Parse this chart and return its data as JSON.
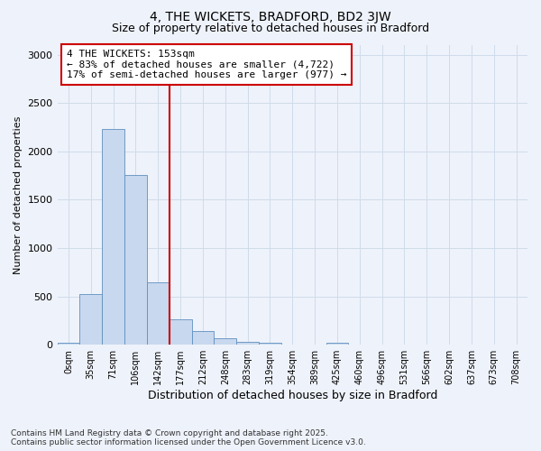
{
  "title": "4, THE WICKETS, BRADFORD, BD2 3JW",
  "subtitle": "Size of property relative to detached houses in Bradford",
  "xlabel": "Distribution of detached houses by size in Bradford",
  "ylabel": "Number of detached properties",
  "bar_color": "#c8d8ee",
  "bar_edge_color": "#6090c0",
  "bins": [
    "0sqm",
    "35sqm",
    "71sqm",
    "106sqm",
    "142sqm",
    "177sqm",
    "212sqm",
    "248sqm",
    "283sqm",
    "319sqm",
    "354sqm",
    "389sqm",
    "425sqm",
    "460sqm",
    "496sqm",
    "531sqm",
    "566sqm",
    "602sqm",
    "637sqm",
    "673sqm",
    "708sqm"
  ],
  "values": [
    25,
    520,
    2230,
    1760,
    650,
    260,
    140,
    70,
    30,
    25,
    0,
    0,
    18,
    0,
    0,
    0,
    0,
    0,
    0,
    0,
    0
  ],
  "ylim": [
    0,
    3100
  ],
  "yticks": [
    0,
    500,
    1000,
    1500,
    2000,
    2500,
    3000
  ],
  "line_x_index": 4,
  "marker_label": "4 THE WICKETS: 153sqm",
  "marker_line1": "← 83% of detached houses are smaller (4,722)",
  "marker_line2": "17% of semi-detached houses are larger (977) →",
  "marker_color": "#cc0000",
  "grid_color": "#d0dcea",
  "background_color": "#eef2fa",
  "footnote1": "Contains HM Land Registry data © Crown copyright and database right 2025.",
  "footnote2": "Contains public sector information licensed under the Open Government Licence v3.0."
}
